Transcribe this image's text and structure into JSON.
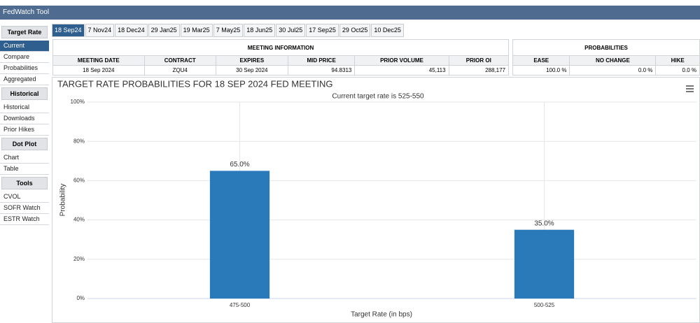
{
  "app_title": "FedWatch Tool",
  "sidebar": [
    {
      "heading": "Target Rate",
      "items": [
        "Current",
        "Compare",
        "Probabilities",
        "Aggregated"
      ]
    },
    {
      "heading": "Historical",
      "items": [
        "Historical",
        "Downloads",
        "Prior Hikes"
      ]
    },
    {
      "heading": "Dot Plot",
      "items": [
        "Chart",
        "Table"
      ]
    },
    {
      "heading": "Tools",
      "items": [
        "CVOL",
        "SOFR Watch",
        "ESTR Watch"
      ]
    }
  ],
  "tabs": [
    "18 Sep24",
    "7 Nov24",
    "18 Dec24",
    "29 Jan25",
    "19 Mar25",
    "7 May25",
    "18 Jun25",
    "30 Jul25",
    "17 Sep25",
    "29 Oct25",
    "10 Dec25"
  ],
  "meeting_info": {
    "title": "MEETING INFORMATION",
    "headers": [
      "MEETING DATE",
      "CONTRACT",
      "EXPIRES",
      "MID PRICE",
      "PRIOR VOLUME",
      "PRIOR OI"
    ],
    "row": [
      "18 Sep 2024",
      "ZQU4",
      "30 Sep 2024",
      "94.8313",
      "45,113",
      "288,177"
    ]
  },
  "probabilities": {
    "title": "PROBABILITIES",
    "headers": [
      "EASE",
      "NO CHANGE",
      "HIKE"
    ],
    "row": [
      "100.0 %",
      "0.0 %",
      "0.0 %"
    ]
  },
  "chart_data": {
    "type": "bar",
    "title": "TARGET RATE PROBABILITIES FOR 18 SEP 2024 FED MEETING",
    "subtitle": "Current target rate is 525-550",
    "x_label": "Target Rate (in bps)",
    "y_label": "Probability",
    "categories": [
      "475-500",
      "500-525"
    ],
    "values": [
      65,
      35
    ],
    "value_labels": [
      "65.0%",
      "35.0%"
    ],
    "color": "#2a7ab9",
    "ylim": [
      0,
      100
    ],
    "yticks": [
      {
        "value": 0,
        "label": "0%"
      },
      {
        "value": 20,
        "label": "20%"
      },
      {
        "value": 40,
        "label": "40%"
      },
      {
        "value": 60,
        "label": "60%"
      },
      {
        "value": 80,
        "label": "80%"
      },
      {
        "value": 100,
        "label": "100%"
      }
    ],
    "grid": true
  }
}
